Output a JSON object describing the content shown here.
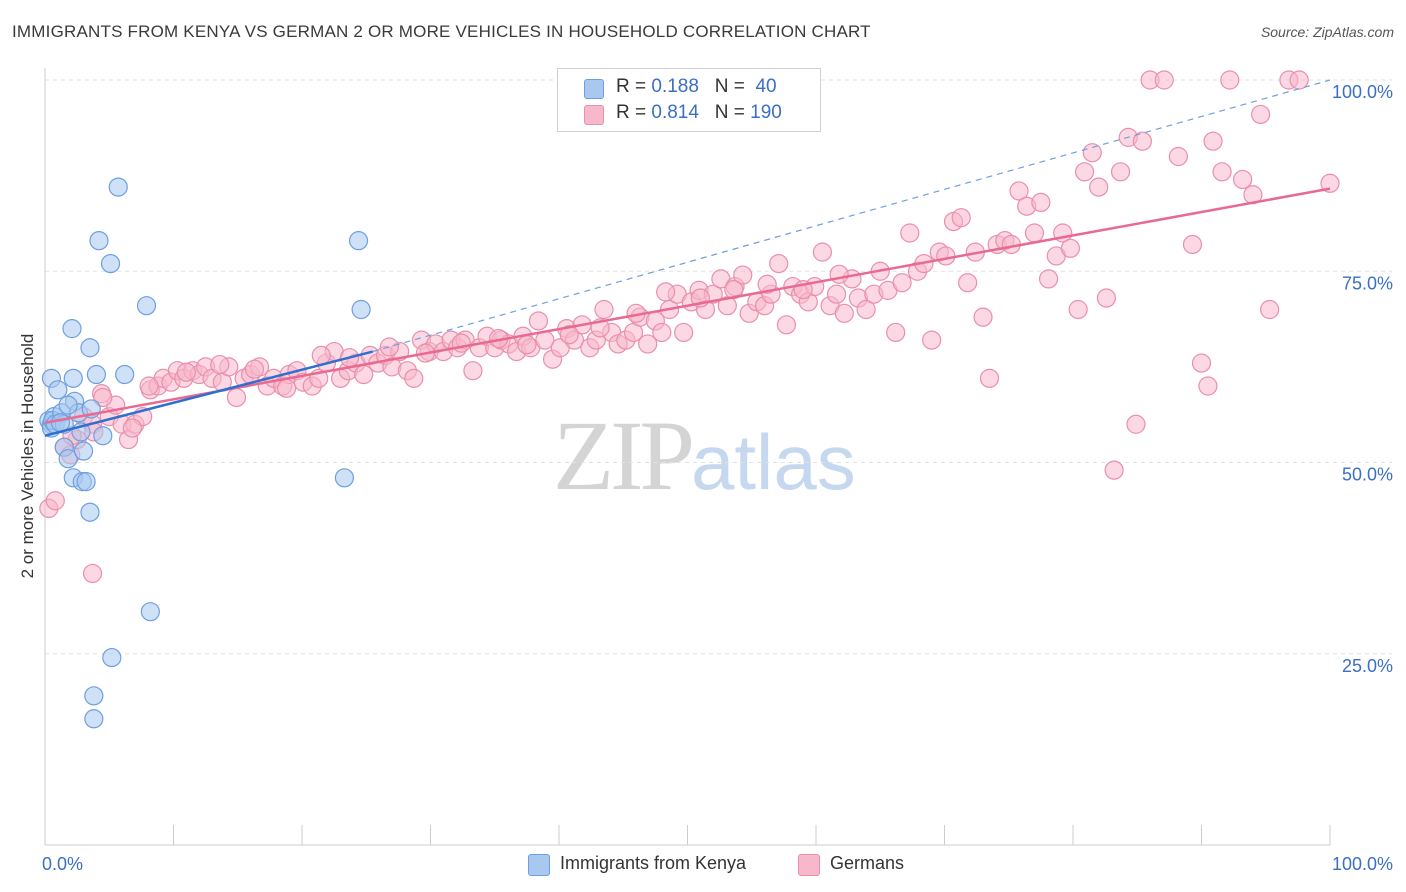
{
  "title": "IMMIGRANTS FROM KENYA VS GERMAN 2 OR MORE VEHICLES IN HOUSEHOLD CORRELATION CHART",
  "source": "Source: ZipAtlas.com",
  "watermark": {
    "zip": "ZIP",
    "atlas": "atlas"
  },
  "legend": {
    "r_label": "R =",
    "n_label": "N =",
    "rows": [
      {
        "r": "0.188",
        "n": "40",
        "color": "#a8c8f0"
      },
      {
        "r": "0.814",
        "n": "190",
        "color": "#f7b8cc"
      }
    ]
  },
  "chart_data": {
    "type": "scatter",
    "ylabel": "2 or more Vehicles in Household",
    "x_tick_labels": [
      "0.0%",
      "100.0%"
    ],
    "y_tick_labels": [
      "25.0%",
      "50.0%",
      "75.0%",
      "100.0%"
    ],
    "xlim": [
      0,
      100
    ],
    "ylim": [
      0,
      100
    ],
    "colors": {
      "kenya": "#6d9fe0",
      "kenya_fill": "#a8c8f0",
      "kenya_line": "#2f6fce",
      "german": "#ea8fab",
      "german_fill": "#f7b8cc",
      "german_line": "#e86a93",
      "axis_text": "#3a6fc4",
      "grid": "#e2e2e2"
    },
    "series": [
      {
        "name": "Immigrants from Kenya",
        "points": [
          [
            0.3,
            55.5
          ],
          [
            0.5,
            55
          ],
          [
            0.7,
            56
          ],
          [
            0.5,
            54.5
          ],
          [
            0.6,
            55.5
          ],
          [
            0.8,
            55
          ],
          [
            0.5,
            61
          ],
          [
            1,
            59.5
          ],
          [
            1.3,
            56.5
          ],
          [
            1.5,
            52
          ],
          [
            1.8,
            50.5
          ],
          [
            1.5,
            55
          ],
          [
            2.1,
            67.5
          ],
          [
            2.3,
            58
          ],
          [
            2.2,
            61
          ],
          [
            2.2,
            48
          ],
          [
            2.6,
            56.5
          ],
          [
            2.8,
            54
          ],
          [
            3,
            51.5
          ],
          [
            2.9,
            47.5
          ],
          [
            3.2,
            47.5
          ],
          [
            3.5,
            65
          ],
          [
            3.5,
            43.5
          ],
          [
            3.6,
            57
          ],
          [
            4,
            61.5
          ],
          [
            4.2,
            79
          ],
          [
            4.5,
            53.5
          ],
          [
            5.1,
            76
          ],
          [
            5.7,
            86
          ],
          [
            5.2,
            24.5
          ],
          [
            3.8,
            19.5
          ],
          [
            3.8,
            16.5
          ],
          [
            6.2,
            61.5
          ],
          [
            7.9,
            70.5
          ],
          [
            8.2,
            30.5
          ],
          [
            23.3,
            48
          ],
          [
            24.4,
            79
          ],
          [
            24.6,
            70
          ],
          [
            1.8,
            57.5
          ],
          [
            1.2,
            55.2
          ]
        ]
      },
      {
        "name": "Germans",
        "points": [
          [
            0.3,
            44
          ],
          [
            0.8,
            45
          ],
          [
            1.5,
            52
          ],
          [
            2,
            51
          ],
          [
            2.5,
            53
          ],
          [
            3,
            56
          ],
          [
            3.7,
            55
          ],
          [
            4.4,
            59
          ],
          [
            5,
            56
          ],
          [
            5.5,
            57.5
          ],
          [
            6,
            55
          ],
          [
            6.5,
            53
          ],
          [
            7,
            55
          ],
          [
            7.6,
            56
          ],
          [
            8.2,
            59.5
          ],
          [
            8.8,
            60
          ],
          [
            9.2,
            61
          ],
          [
            9.8,
            60.5
          ],
          [
            10.3,
            62
          ],
          [
            10.8,
            61
          ],
          [
            11.5,
            62
          ],
          [
            12,
            61.5
          ],
          [
            12.5,
            62.5
          ],
          [
            13,
            61
          ],
          [
            13.8,
            60.5
          ],
          [
            14.3,
            62.5
          ],
          [
            14.9,
            58.5
          ],
          [
            15.5,
            61
          ],
          [
            16,
            61.5
          ],
          [
            16.7,
            62.5
          ],
          [
            17.3,
            60
          ],
          [
            17.8,
            61
          ],
          [
            18.5,
            60
          ],
          [
            19,
            61.5
          ],
          [
            19.6,
            62
          ],
          [
            20.1,
            60.5
          ],
          [
            20.8,
            60
          ],
          [
            21.3,
            61
          ],
          [
            21.9,
            63
          ],
          [
            22.5,
            64.5
          ],
          [
            23,
            61
          ],
          [
            23.6,
            62
          ],
          [
            24.2,
            63
          ],
          [
            24.8,
            61.5
          ],
          [
            25.3,
            64
          ],
          [
            25.9,
            63
          ],
          [
            26.5,
            64
          ],
          [
            27,
            62.5
          ],
          [
            27.6,
            64.5
          ],
          [
            28.2,
            62
          ],
          [
            28.7,
            61
          ],
          [
            29.3,
            66
          ],
          [
            29.9,
            64.5
          ],
          [
            30.4,
            65.5
          ],
          [
            31,
            64.5
          ],
          [
            31.6,
            66
          ],
          [
            32.1,
            65
          ],
          [
            32.7,
            66
          ],
          [
            33.3,
            62
          ],
          [
            33.8,
            65
          ],
          [
            34.4,
            66.5
          ],
          [
            35,
            65
          ],
          [
            35.5,
            66
          ],
          [
            36.1,
            65.5
          ],
          [
            36.7,
            64.5
          ],
          [
            37.2,
            66.5
          ],
          [
            37.8,
            65
          ],
          [
            38.4,
            68.5
          ],
          [
            38.9,
            66
          ],
          [
            39.5,
            63.5
          ],
          [
            40.1,
            65
          ],
          [
            40.6,
            67.5
          ],
          [
            41.2,
            66
          ],
          [
            41.8,
            68
          ],
          [
            42.4,
            65
          ],
          [
            42.9,
            66
          ],
          [
            43.5,
            70
          ],
          [
            44.1,
            67
          ],
          [
            44.6,
            65.5
          ],
          [
            45.2,
            66
          ],
          [
            45.8,
            67
          ],
          [
            46.3,
            69
          ],
          [
            46.9,
            65.5
          ],
          [
            47.5,
            68.5
          ],
          [
            48,
            67
          ],
          [
            48.6,
            70
          ],
          [
            49.2,
            72
          ],
          [
            49.7,
            67
          ],
          [
            50.3,
            71
          ],
          [
            50.9,
            72.5
          ],
          [
            51.4,
            70
          ],
          [
            52,
            72
          ],
          [
            52.6,
            74
          ],
          [
            53.1,
            70.5
          ],
          [
            53.7,
            73
          ],
          [
            54.3,
            74.5
          ],
          [
            54.8,
            69.5
          ],
          [
            55.4,
            71
          ],
          [
            56,
            70.5
          ],
          [
            56.5,
            72
          ],
          [
            57.1,
            76
          ],
          [
            57.7,
            68
          ],
          [
            58.2,
            73
          ],
          [
            58.8,
            72
          ],
          [
            59.4,
            71
          ],
          [
            59.9,
            73
          ],
          [
            60.5,
            77.5
          ],
          [
            61.1,
            70.5
          ],
          [
            61.6,
            72
          ],
          [
            62.2,
            69.5
          ],
          [
            62.8,
            74
          ],
          [
            63.3,
            71.5
          ],
          [
            63.9,
            70
          ],
          [
            64.5,
            72
          ],
          [
            65,
            75
          ],
          [
            65.6,
            72.5
          ],
          [
            66.2,
            67
          ],
          [
            66.7,
            73.5
          ],
          [
            67.3,
            80
          ],
          [
            67.9,
            75
          ],
          [
            68.4,
            76
          ],
          [
            69,
            66
          ],
          [
            69.6,
            77.5
          ],
          [
            70.1,
            77
          ],
          [
            70.7,
            81.5
          ],
          [
            71.3,
            82
          ],
          [
            71.8,
            73.5
          ],
          [
            72.4,
            77.5
          ],
          [
            73,
            69
          ],
          [
            73.5,
            61
          ],
          [
            74.1,
            78.5
          ],
          [
            74.7,
            79
          ],
          [
            75.2,
            78.5
          ],
          [
            75.8,
            85.5
          ],
          [
            76.4,
            83.5
          ],
          [
            77,
            80
          ],
          [
            77.5,
            84
          ],
          [
            78.1,
            74
          ],
          [
            78.7,
            77
          ],
          [
            79.2,
            80
          ],
          [
            79.8,
            78
          ],
          [
            80.4,
            70
          ],
          [
            80.9,
            88
          ],
          [
            81.5,
            90.5
          ],
          [
            82,
            86
          ],
          [
            82.6,
            71.5
          ],
          [
            83.2,
            49
          ],
          [
            83.7,
            88
          ],
          [
            84.3,
            92.5
          ],
          [
            84.9,
            55
          ],
          [
            85.4,
            92
          ],
          [
            86,
            100
          ],
          [
            87.1,
            100
          ],
          [
            88.2,
            90
          ],
          [
            89.3,
            78.5
          ],
          [
            90,
            63
          ],
          [
            90.5,
            60
          ],
          [
            90.9,
            92
          ],
          [
            91.6,
            88
          ],
          [
            92.2,
            100
          ],
          [
            93.2,
            87
          ],
          [
            94,
            85
          ],
          [
            94.6,
            95.5
          ],
          [
            95.3,
            70
          ],
          [
            96.8,
            100
          ],
          [
            97.6,
            100
          ],
          [
            100,
            86.5
          ],
          [
            3.7,
            35.5
          ],
          [
            2.1,
            53.5
          ],
          [
            3.8,
            54
          ],
          [
            4.5,
            58.5
          ],
          [
            6.8,
            54.5
          ],
          [
            8.1,
            60
          ],
          [
            11,
            61.8
          ],
          [
            13.6,
            62.8
          ],
          [
            16.3,
            62.2
          ],
          [
            18.8,
            59.7
          ],
          [
            21.5,
            64
          ],
          [
            23.7,
            63.7
          ],
          [
            26.8,
            65.1
          ],
          [
            29.6,
            64.3
          ],
          [
            32.4,
            65.6
          ],
          [
            35.3,
            66.2
          ],
          [
            37.5,
            65.4
          ],
          [
            40.8,
            66.7
          ],
          [
            43.2,
            67.6
          ],
          [
            46,
            69.5
          ],
          [
            48.3,
            72.3
          ],
          [
            51,
            71.5
          ],
          [
            53.6,
            72.6
          ],
          [
            56.2,
            73.3
          ],
          [
            59,
            72.6
          ],
          [
            61.8,
            74.6
          ]
        ]
      }
    ],
    "trend_lines": [
      {
        "series": "Immigrants from Kenya",
        "from": [
          0,
          53.5
        ],
        "to": [
          25.5,
          64.5
        ]
      },
      {
        "series": "Germans",
        "from": [
          0,
          55.2
        ],
        "to": [
          100,
          85.8
        ]
      },
      {
        "series": "dashed",
        "from": [
          25.5,
          64.5
        ],
        "to": [
          100,
          100
        ]
      }
    ]
  },
  "bottom_legend": [
    {
      "label": "Immigrants from Kenya",
      "color": "#a8c8f0"
    },
    {
      "label": "Germans",
      "color": "#f7b8cc"
    }
  ]
}
